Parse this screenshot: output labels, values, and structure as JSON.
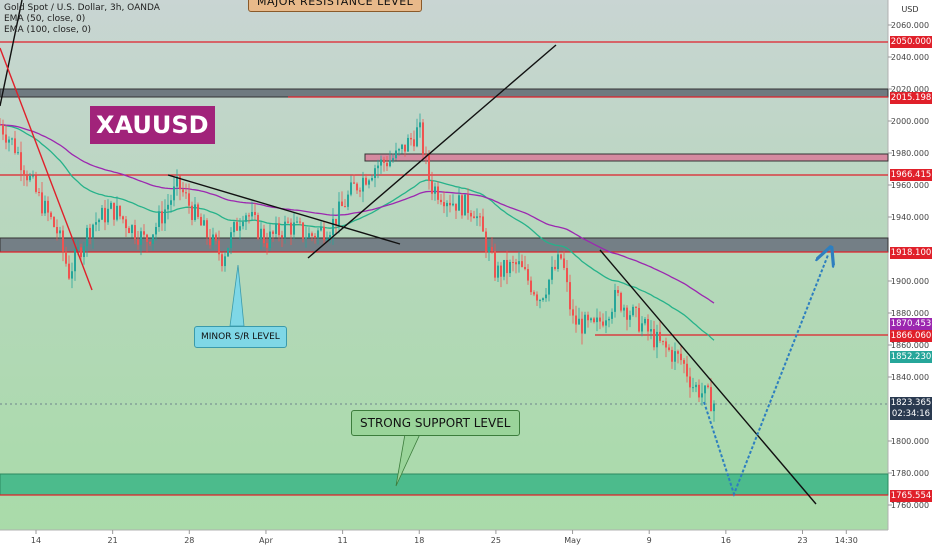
{
  "legend": {
    "title": "Gold Spot / U.S. Dollar, 3h, OANDA",
    "ema50": "EMA (50, close, 0)",
    "ema100": "EMA (100, close, 0)"
  },
  "annotations": {
    "major_resistance": "MAJOR RESISTANCE LEVEL",
    "symbol": "XAUUSD",
    "minor_sr": "MINOR S/R LEVEL",
    "strong_support": "STRONG SUPPORT LEVEL"
  },
  "axis": {
    "currency": "USD",
    "price_ticks": [
      "2060.000",
      "2040.000",
      "2020.000",
      "2000.000",
      "1980.000",
      "1960.000",
      "1940.000",
      "1900.000",
      "1880.000",
      "1860.000",
      "1840.000",
      "1800.000",
      "1780.000",
      "1760.000"
    ],
    "date_ticks": [
      "14",
      "21",
      "28",
      "Apr",
      "11",
      "18",
      "25",
      "May",
      "9",
      "16",
      "23",
      "14:30"
    ]
  },
  "price_tags": [
    {
      "label": "2050.000",
      "color": "#e0202a"
    },
    {
      "label": "2015.198",
      "color": "#e0202a"
    },
    {
      "label": "1966.415",
      "color": "#e0202a"
    },
    {
      "label": "1918.100",
      "color": "#e0202a"
    },
    {
      "label": "1870.453",
      "color": "#9c27b0"
    },
    {
      "label": "1866.060",
      "color": "#e0202a"
    },
    {
      "label": "1852.230",
      "color": "#26a69a"
    },
    {
      "label": "1823.365",
      "color": "#2a3a50"
    },
    {
      "label": "02:34:16",
      "color": "#2a3a50"
    },
    {
      "label": "1765.554",
      "color": "#e0202a"
    }
  ],
  "colors": {
    "up": "#26a69a",
    "down": "#ef5350",
    "ema50": "#26b28a",
    "ema100": "#9c27b0",
    "level_line": "#e0202a",
    "bg_top": "#c8d6d2",
    "bg_bottom": "#a8d8a8"
  },
  "chart_data": {
    "type": "candlestick",
    "symbol": "XAUUSD",
    "timeframe": "3h",
    "ylim": [
      1752,
      2068
    ],
    "horizontal_levels": [
      2050.0,
      2015.198,
      1966.415,
      1918.1,
      1866.06,
      1765.554
    ],
    "last_price": 1823.365,
    "ema50_last": 1852.23,
    "ema100_last": 1870.453,
    "close_path": [
      [
        "Mar 10",
        2005
      ],
      [
        "Mar 12",
        1985
      ],
      [
        "Mar 14",
        1955
      ],
      [
        "Mar 16",
        1930
      ],
      [
        "Mar 17",
        1905
      ],
      [
        "Mar 19",
        1935
      ],
      [
        "Mar 21",
        1945
      ],
      [
        "Mar 24",
        1925
      ],
      [
        "Mar 25",
        1935
      ],
      [
        "Mar 27",
        1960
      ],
      [
        "Mar 29",
        1935
      ],
      [
        "Mar 31",
        1915
      ],
      [
        "Apr 2",
        1945
      ],
      [
        "Apr 4",
        1925
      ],
      [
        "Apr 6",
        1935
      ],
      [
        "Apr 8",
        1928
      ],
      [
        "Apr 10",
        1935
      ],
      [
        "Apr 12",
        1958
      ],
      [
        "Apr 14",
        1972
      ],
      [
        "Apr 16",
        1978
      ],
      [
        "Apr 18",
        1995
      ],
      [
        "Apr 19",
        1960
      ],
      [
        "Apr 21",
        1950
      ],
      [
        "Apr 23",
        1945
      ],
      [
        "Apr 25",
        1905
      ],
      [
        "Apr 27",
        1910
      ],
      [
        "Apr 29",
        1890
      ],
      [
        "May 1",
        1915
      ],
      [
        "May 2",
        1875
      ],
      [
        "May 4",
        1870
      ],
      [
        "May 6",
        1890
      ],
      [
        "May 8",
        1875
      ],
      [
        "May 10",
        1860
      ],
      [
        "May 12",
        1850
      ],
      [
        "May 13",
        1835
      ],
      [
        "May 15",
        1823.365
      ]
    ],
    "projection": [
      [
        "May 15",
        1823.365
      ],
      [
        "May 18",
        1768
      ],
      [
        "May 24",
        1912
      ]
    ]
  }
}
